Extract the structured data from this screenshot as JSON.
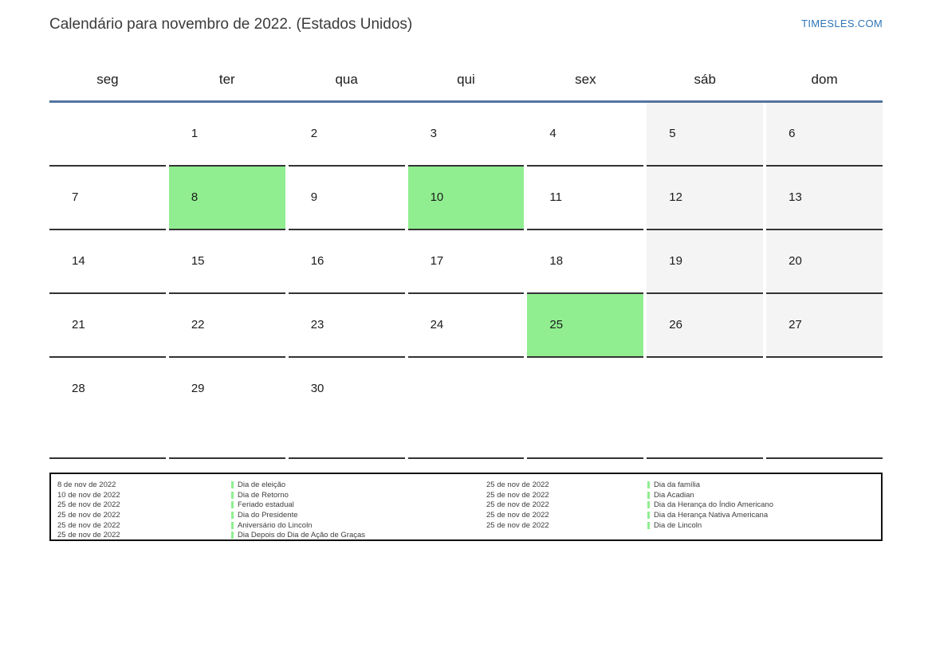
{
  "page": {
    "title": "Calendário para novembro de 2022. (Estados Unidos)",
    "site_link": "TIMESLES.COM"
  },
  "calendar": {
    "weekdays": [
      "seg",
      "ter",
      "qua",
      "qui",
      "sex",
      "sáb",
      "dom"
    ],
    "weeks": [
      [
        {
          "day": "",
          "type": "empty"
        },
        {
          "day": "1",
          "type": "normal"
        },
        {
          "day": "2",
          "type": "normal"
        },
        {
          "day": "3",
          "type": "normal"
        },
        {
          "day": "4",
          "type": "normal"
        },
        {
          "day": "5",
          "type": "weekend"
        },
        {
          "day": "6",
          "type": "weekend"
        }
      ],
      [
        {
          "day": "7",
          "type": "normal"
        },
        {
          "day": "8",
          "type": "holiday"
        },
        {
          "day": "9",
          "type": "normal"
        },
        {
          "day": "10",
          "type": "holiday"
        },
        {
          "day": "11",
          "type": "normal"
        },
        {
          "day": "12",
          "type": "weekend"
        },
        {
          "day": "13",
          "type": "weekend"
        }
      ],
      [
        {
          "day": "14",
          "type": "normal"
        },
        {
          "day": "15",
          "type": "normal"
        },
        {
          "day": "16",
          "type": "normal"
        },
        {
          "day": "17",
          "type": "normal"
        },
        {
          "day": "18",
          "type": "normal"
        },
        {
          "day": "19",
          "type": "weekend"
        },
        {
          "day": "20",
          "type": "weekend"
        }
      ],
      [
        {
          "day": "21",
          "type": "normal"
        },
        {
          "day": "22",
          "type": "normal"
        },
        {
          "day": "23",
          "type": "normal"
        },
        {
          "day": "24",
          "type": "normal"
        },
        {
          "day": "25",
          "type": "holiday"
        },
        {
          "day": "26",
          "type": "weekend"
        },
        {
          "day": "27",
          "type": "weekend"
        }
      ],
      [
        {
          "day": "28",
          "type": "normal"
        },
        {
          "day": "29",
          "type": "normal"
        },
        {
          "day": "30",
          "type": "normal"
        },
        {
          "day": "",
          "type": "empty"
        },
        {
          "day": "",
          "type": "empty"
        },
        {
          "day": "",
          "type": "empty"
        },
        {
          "day": "",
          "type": "empty"
        }
      ]
    ],
    "colors": {
      "holiday_bg": "#90ee90",
      "weekend_bg": "#f4f4f4",
      "header_line": "#53749e",
      "cell_border": "#333333",
      "link_blue": "#2e75b6"
    }
  },
  "legend": {
    "left": [
      {
        "date": "8 de nov de 2022",
        "name": "Dia de eleição"
      },
      {
        "date": "10 de nov de 2022",
        "name": "Dia de Retorno"
      },
      {
        "date": "25 de nov de 2022",
        "name": "Feriado estadual"
      },
      {
        "date": "25 de nov de 2022",
        "name": "Dia do Presidente"
      },
      {
        "date": "25 de nov de 2022",
        "name": "Aniversário do Lincoln"
      },
      {
        "date": "25 de nov de 2022",
        "name": "Dia Depois do Dia de Ação de Graças"
      }
    ],
    "right": [
      {
        "date": "25 de nov de 2022",
        "name": "Dia da família"
      },
      {
        "date": "25 de nov de 2022",
        "name": "Dia Acadian"
      },
      {
        "date": "25 de nov de 2022",
        "name": "Dia da Herança do Índio Americano"
      },
      {
        "date": "25 de nov de 2022",
        "name": "Dia da Herança Nativa Americana"
      },
      {
        "date": "25 de nov de 2022",
        "name": "Dia de Lincoln"
      }
    ]
  }
}
